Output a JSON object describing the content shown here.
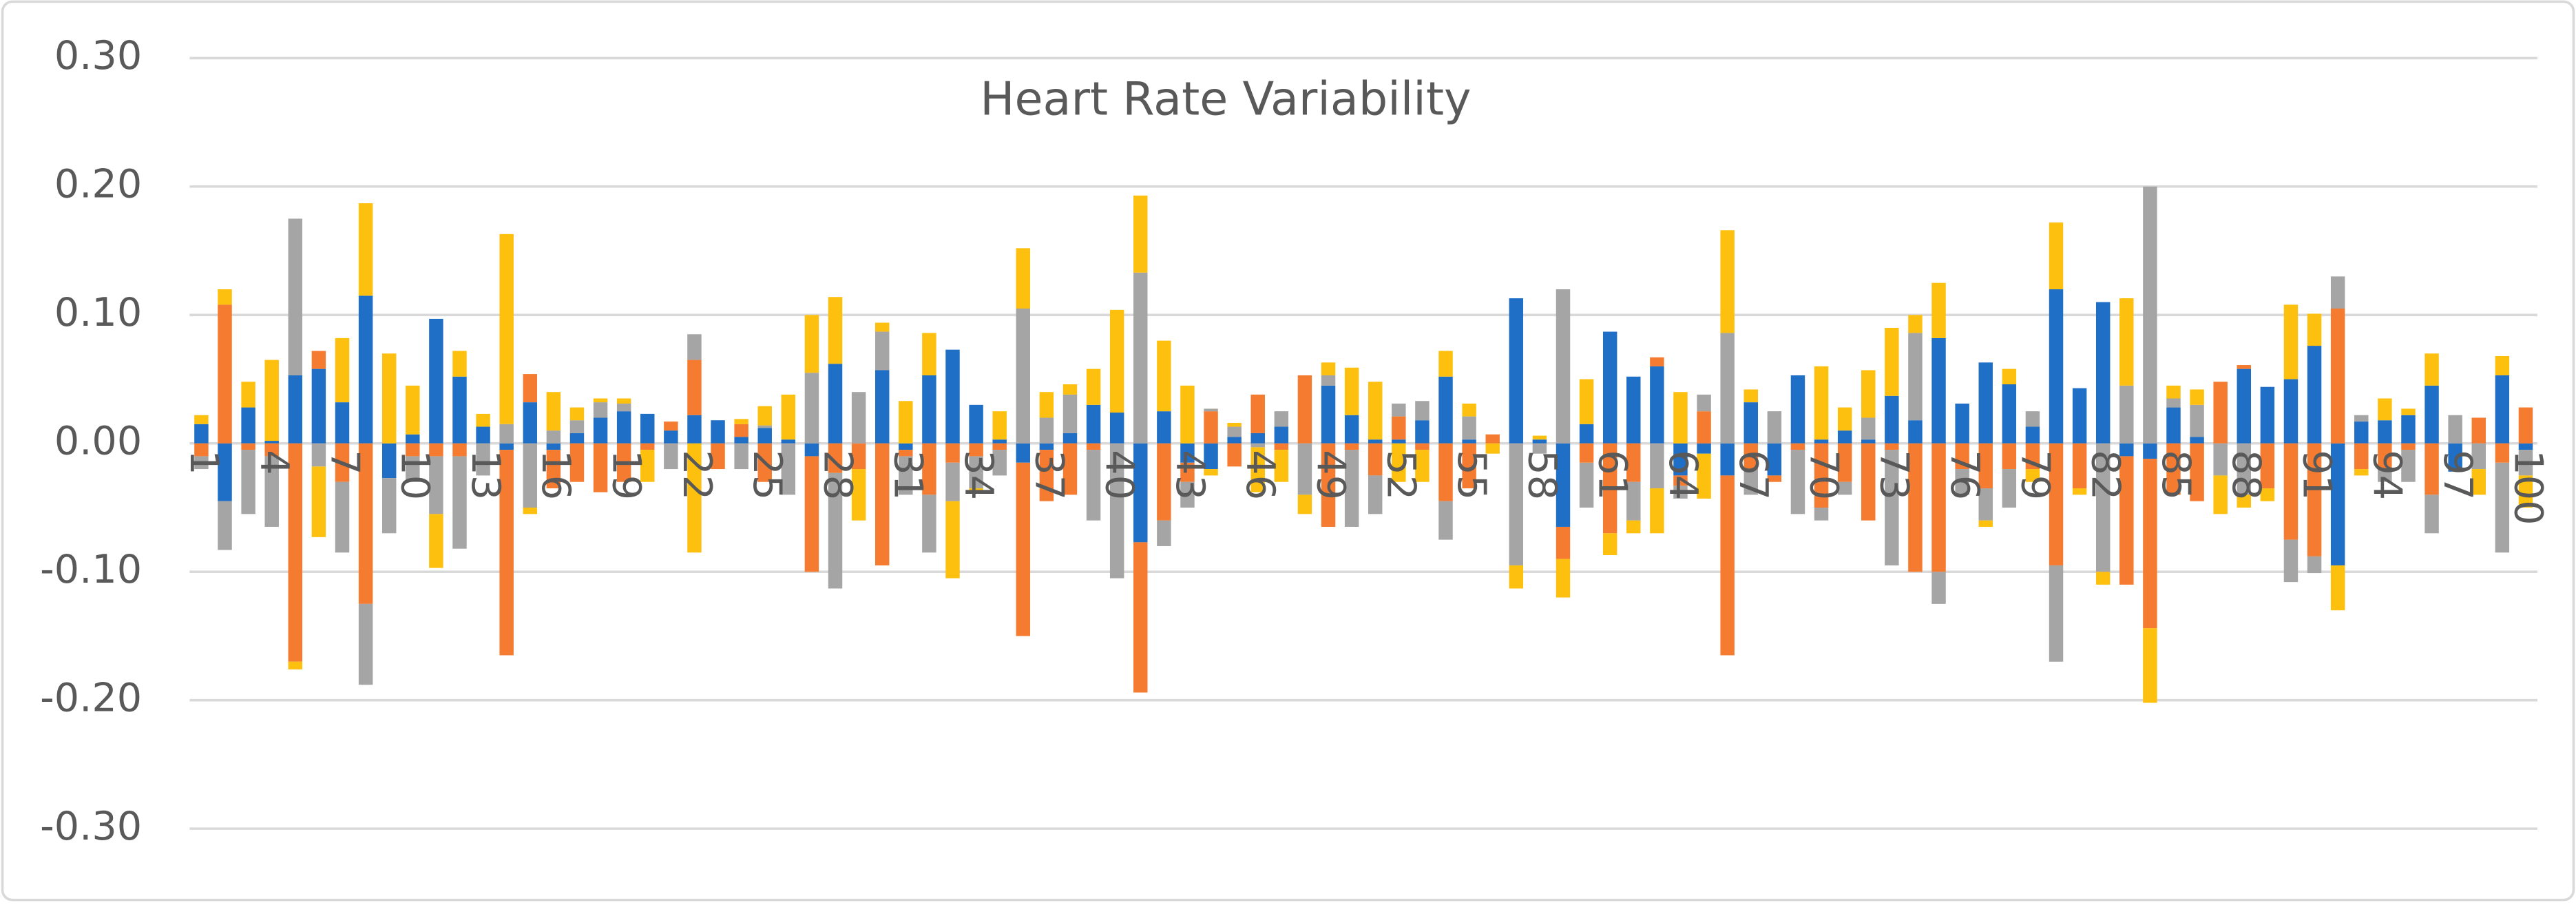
{
  "chart_data": {
    "type": "bar",
    "stacked": true,
    "title": "Heart Rate Variability",
    "categories": [
      "1",
      null,
      null,
      "4",
      null,
      null,
      "7",
      null,
      null,
      "10",
      null,
      null,
      "13",
      null,
      null,
      "16",
      null,
      null,
      "19",
      null,
      null,
      "22",
      null,
      null,
      "25",
      null,
      null,
      "28",
      null,
      null,
      "31",
      null,
      null,
      "34",
      null,
      null,
      "37",
      null,
      null,
      "40",
      null,
      null,
      "43",
      null,
      null,
      "46",
      null,
      null,
      "49",
      null,
      null,
      "52",
      null,
      null,
      "55",
      null,
      null,
      "58",
      null,
      null,
      "61",
      null,
      null,
      "64",
      null,
      null,
      "67",
      null,
      null,
      "70",
      null,
      null,
      "73",
      null,
      null,
      "76",
      null,
      null,
      "79",
      null,
      null,
      "82",
      null,
      null,
      "85",
      null,
      null,
      "88",
      null,
      null,
      "91",
      null,
      null,
      "94",
      null,
      null,
      "97",
      null,
      null,
      "100"
    ],
    "series": [
      {
        "color": "#1f6fc6",
        "values": [
          0.015,
          -0.045,
          0.028,
          0.002,
          0.053,
          0.058,
          0.032,
          0.115,
          -0.027,
          0.007,
          0.097,
          0.052,
          0.013,
          -0.005,
          0.032,
          -0.005,
          0.008,
          0.02,
          0.025,
          0.023,
          0.01,
          0.022,
          0.018,
          0.005,
          0.012,
          0.003,
          -0.01,
          0.062,
          0,
          0.057,
          -0.005,
          0.053,
          0.073,
          0.03,
          0.003,
          -0.015,
          -0.005,
          0.008,
          0.03,
          0.024,
          -0.077,
          0.025,
          -0.015,
          -0.02,
          0.005,
          0.008,
          0.013,
          0,
          0.045,
          0.022,
          0.003,
          0.003,
          0.018,
          0.052,
          0.003,
          0,
          0.113,
          0.003,
          -0.065,
          0.015,
          0.087,
          0.052,
          0.06,
          -0.025,
          -0.008,
          -0.025,
          0.032,
          -0.025,
          0.053,
          0.003,
          0.01,
          0.003,
          0.037,
          0.018,
          0.082,
          0.031,
          0.063,
          0.046,
          0.013,
          0.12,
          0.043,
          0.11,
          -0.01,
          -0.012,
          0.028,
          0.005,
          0,
          0.058,
          0.044,
          0.05,
          0.076,
          -0.095,
          0.017,
          0.018,
          0.022,
          0.045,
          -0.022,
          0,
          0.053,
          -0.005
        ]
      },
      {
        "color": "#f47b2f",
        "values": [
          -0.01,
          0.108,
          -0.005,
          -0.01,
          -0.17,
          0.014,
          -0.03,
          -0.125,
          0,
          -0.01,
          -0.01,
          -0.01,
          0,
          -0.16,
          0.022,
          -0.03,
          -0.03,
          -0.038,
          -0.03,
          -0.005,
          0.007,
          0.043,
          -0.02,
          0.01,
          -0.03,
          0,
          -0.09,
          -0.023,
          -0.02,
          -0.095,
          -0.005,
          -0.04,
          -0.015,
          -0.01,
          -0.005,
          -0.135,
          -0.04,
          -0.04,
          -0.005,
          0,
          -0.117,
          -0.06,
          -0.015,
          0.025,
          -0.018,
          0.03,
          -0.005,
          0.053,
          -0.065,
          -0.005,
          -0.025,
          0.018,
          -0.005,
          -0.045,
          -0.035,
          0.007,
          0,
          0,
          -0.025,
          -0.015,
          -0.07,
          -0.03,
          0.007,
          -0.008,
          0.025,
          -0.14,
          -0.02,
          -0.005,
          -0.005,
          -0.05,
          -0.03,
          -0.06,
          -0.005,
          -0.1,
          -0.1,
          -0.02,
          -0.035,
          -0.02,
          -0.02,
          -0.095,
          -0.035,
          0,
          -0.1,
          -0.132,
          -0.04,
          -0.045,
          0.048,
          0.003,
          -0.035,
          -0.075,
          -0.088,
          0.105,
          -0.02,
          -0.02,
          -0.005,
          -0.04,
          0,
          0.02,
          -0.015,
          0.028
        ]
      },
      {
        "color": "#a5a5a5",
        "values": [
          -0.01,
          -0.038,
          -0.05,
          -0.055,
          0.122,
          -0.018,
          -0.055,
          -0.063,
          -0.043,
          -0.02,
          -0.045,
          -0.072,
          -0.025,
          0.015,
          -0.05,
          0.01,
          0.01,
          0.012,
          0.006,
          0,
          -0.02,
          0.02,
          0,
          -0.02,
          0.002,
          -0.04,
          0.055,
          -0.09,
          0.04,
          0.03,
          -0.03,
          -0.045,
          -0.03,
          -0.025,
          -0.02,
          0.105,
          0.02,
          0.03,
          -0.055,
          -0.105,
          0.133,
          -0.02,
          -0.02,
          0.002,
          0.008,
          -0.003,
          0.012,
          -0.04,
          0.008,
          -0.06,
          -0.03,
          0.01,
          0.015,
          -0.03,
          0.018,
          0,
          -0.095,
          -0.008,
          0.12,
          -0.035,
          0,
          -0.03,
          -0.035,
          -0.01,
          0.013,
          0.086,
          -0.02,
          0.025,
          -0.05,
          -0.01,
          -0.01,
          0.017,
          -0.09,
          0.068,
          -0.025,
          -0.02,
          -0.025,
          -0.03,
          0.012,
          -0.075,
          0,
          -0.1,
          0.045,
          0.2,
          0.007,
          0.025,
          -0.025,
          -0.04,
          0,
          -0.033,
          -0.013,
          0.025,
          0.005,
          -0.01,
          -0.025,
          -0.03,
          0.022,
          -0.02,
          -0.07,
          -0.02
        ]
      },
      {
        "color": "#fdc00f",
        "values": [
          0.007,
          0.012,
          0.02,
          0.063,
          -0.006,
          -0.055,
          0.05,
          0.072,
          0.07,
          0.038,
          -0.042,
          0.02,
          0.01,
          0.148,
          -0.005,
          0.03,
          0.01,
          0.003,
          0.004,
          -0.025,
          0,
          -0.085,
          0,
          0.004,
          0.015,
          0.035,
          0.045,
          0.052,
          -0.04,
          0.007,
          0.033,
          0.033,
          -0.06,
          -0.003,
          0.022,
          0.047,
          0.02,
          0.008,
          0.028,
          0.08,
          0.06,
          0.055,
          0.045,
          -0.005,
          0.003,
          -0.035,
          -0.025,
          -0.015,
          0.01,
          0.037,
          0.045,
          -0.03,
          -0.025,
          0.02,
          0.01,
          -0.008,
          -0.018,
          0.003,
          -0.03,
          0.035,
          -0.017,
          -0.01,
          -0.035,
          0.04,
          -0.035,
          0.08,
          0.01,
          0,
          0,
          0.057,
          0.018,
          0.037,
          0.053,
          0.014,
          0.043,
          0,
          -0.005,
          0.012,
          -0.01,
          0.052,
          -0.005,
          -0.01,
          0.068,
          -0.058,
          0.01,
          0.012,
          -0.03,
          -0.01,
          -0.01,
          0.058,
          0.025,
          -0.035,
          -0.005,
          0.017,
          0.005,
          0.025,
          0,
          -0.02,
          0.015,
          -0.025
        ]
      }
    ],
    "ylim": [
      -0.3,
      0.3
    ],
    "yticks": [
      {
        "value": -0.3,
        "label": "-0.30"
      },
      {
        "value": -0.2,
        "label": "-0.20"
      },
      {
        "value": -0.1,
        "label": "-0.10"
      },
      {
        "value": 0,
        "label": "0.00"
      },
      {
        "value": 0.1,
        "label": "0.10"
      },
      {
        "value": 0.2,
        "label": "0.20"
      },
      {
        "value": 0.3,
        "label": "0.30"
      }
    ],
    "grid": true
  }
}
